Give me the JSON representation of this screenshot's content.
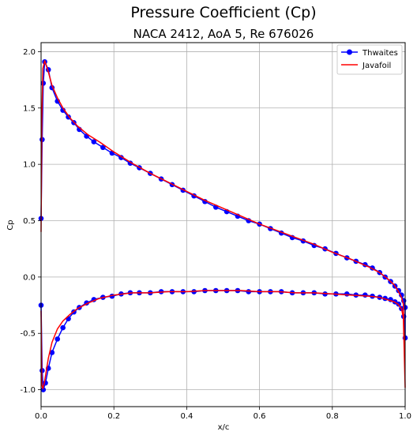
{
  "chart_data": {
    "type": "line",
    "title": "Pressure Coefficient (Cp)",
    "subtitle": "NACA 2412, AoA 5, Re 676026",
    "xlabel": "x/c",
    "ylabel": "Cp",
    "xlim": [
      0,
      1
    ],
    "ylim": [
      -1.15,
      2.08
    ],
    "x_ticks": [
      "0.0",
      "0.2",
      "0.4",
      "0.6",
      "0.8",
      "1.0"
    ],
    "y_ticks": [
      "2.0",
      "1.5",
      "1.0",
      "0.5",
      "0.0",
      "-0.5",
      "-1.0"
    ],
    "grid": true,
    "legend_position": "top-right",
    "series": [
      {
        "name": "Thwaites",
        "color": "#0000ff",
        "marker": "circle",
        "x": [
          0.0,
          0.003,
          0.006,
          0.01,
          0.02,
          0.03,
          0.045,
          0.06,
          0.075,
          0.09,
          0.105,
          0.125,
          0.145,
          0.17,
          0.195,
          0.22,
          0.245,
          0.27,
          0.3,
          0.33,
          0.36,
          0.39,
          0.42,
          0.45,
          0.48,
          0.51,
          0.54,
          0.57,
          0.6,
          0.63,
          0.66,
          0.69,
          0.72,
          0.75,
          0.78,
          0.81,
          0.84,
          0.865,
          0.89,
          0.91,
          0.93,
          0.945,
          0.96,
          0.972,
          0.982,
          0.99,
          0.996,
          1.0,
          1.0,
          0.996,
          0.99,
          0.982,
          0.972,
          0.96,
          0.945,
          0.93,
          0.91,
          0.89,
          0.865,
          0.84,
          0.81,
          0.78,
          0.75,
          0.72,
          0.69,
          0.66,
          0.63,
          0.6,
          0.57,
          0.54,
          0.51,
          0.48,
          0.45,
          0.42,
          0.39,
          0.36,
          0.33,
          0.3,
          0.27,
          0.245,
          0.22,
          0.195,
          0.17,
          0.145,
          0.125,
          0.105,
          0.09,
          0.075,
          0.06,
          0.045,
          0.03,
          0.02,
          0.012,
          0.006,
          0.003,
          0.0
        ],
        "y": [
          0.52,
          1.22,
          1.72,
          1.91,
          1.84,
          1.68,
          1.56,
          1.48,
          1.42,
          1.37,
          1.31,
          1.25,
          1.2,
          1.15,
          1.1,
          1.06,
          1.01,
          0.97,
          0.92,
          0.87,
          0.82,
          0.77,
          0.72,
          0.67,
          0.62,
          0.58,
          0.54,
          0.5,
          0.47,
          0.43,
          0.39,
          0.35,
          0.32,
          0.28,
          0.25,
          0.21,
          0.17,
          0.14,
          0.11,
          0.08,
          0.04,
          0.0,
          -0.04,
          -0.08,
          -0.12,
          -0.16,
          -0.21,
          -0.27,
          -0.54,
          -0.35,
          -0.28,
          -0.24,
          -0.22,
          -0.2,
          -0.19,
          -0.18,
          -0.17,
          -0.16,
          -0.16,
          -0.15,
          -0.15,
          -0.15,
          -0.14,
          -0.14,
          -0.14,
          -0.13,
          -0.13,
          -0.13,
          -0.13,
          -0.12,
          -0.12,
          -0.12,
          -0.12,
          -0.13,
          -0.13,
          -0.13,
          -0.13,
          -0.14,
          -0.14,
          -0.14,
          -0.15,
          -0.17,
          -0.18,
          -0.2,
          -0.23,
          -0.27,
          -0.31,
          -0.37,
          -0.45,
          -0.55,
          -0.67,
          -0.81,
          -0.94,
          -1.0,
          -0.83,
          -0.25
        ]
      },
      {
        "name": "Javafoil",
        "color": "#ff0000",
        "marker": "none",
        "x": [
          0.0,
          0.002,
          0.005,
          0.01,
          0.02,
          0.03,
          0.045,
          0.06,
          0.08,
          0.1,
          0.13,
          0.16,
          0.2,
          0.25,
          0.3,
          0.35,
          0.4,
          0.45,
          0.5,
          0.55,
          0.6,
          0.65,
          0.7,
          0.75,
          0.8,
          0.85,
          0.9,
          0.93,
          0.95,
          0.97,
          0.98,
          0.99,
          0.995,
          1.0,
          1.0,
          0.995,
          0.99,
          0.98,
          0.97,
          0.95,
          0.93,
          0.9,
          0.85,
          0.8,
          0.75,
          0.7,
          0.65,
          0.6,
          0.55,
          0.5,
          0.45,
          0.4,
          0.35,
          0.3,
          0.25,
          0.2,
          0.16,
          0.13,
          0.1,
          0.08,
          0.06,
          0.045,
          0.03,
          0.02,
          0.01,
          0.005,
          0.002,
          0.0
        ],
        "y": [
          0.4,
          1.4,
          1.85,
          1.92,
          1.82,
          1.7,
          1.59,
          1.5,
          1.41,
          1.34,
          1.26,
          1.2,
          1.11,
          1.01,
          0.92,
          0.84,
          0.76,
          0.68,
          0.61,
          0.54,
          0.47,
          0.41,
          0.35,
          0.29,
          0.22,
          0.16,
          0.09,
          0.04,
          -0.01,
          -0.07,
          -0.12,
          -0.18,
          -0.24,
          -0.98,
          -0.98,
          -0.36,
          -0.28,
          -0.24,
          -0.22,
          -0.2,
          -0.18,
          -0.17,
          -0.16,
          -0.15,
          -0.14,
          -0.14,
          -0.13,
          -0.13,
          -0.12,
          -0.12,
          -0.12,
          -0.13,
          -0.13,
          -0.14,
          -0.14,
          -0.16,
          -0.19,
          -0.23,
          -0.28,
          -0.33,
          -0.39,
          -0.46,
          -0.58,
          -0.72,
          -0.92,
          -0.99,
          -0.96,
          -0.3
        ]
      }
    ]
  }
}
